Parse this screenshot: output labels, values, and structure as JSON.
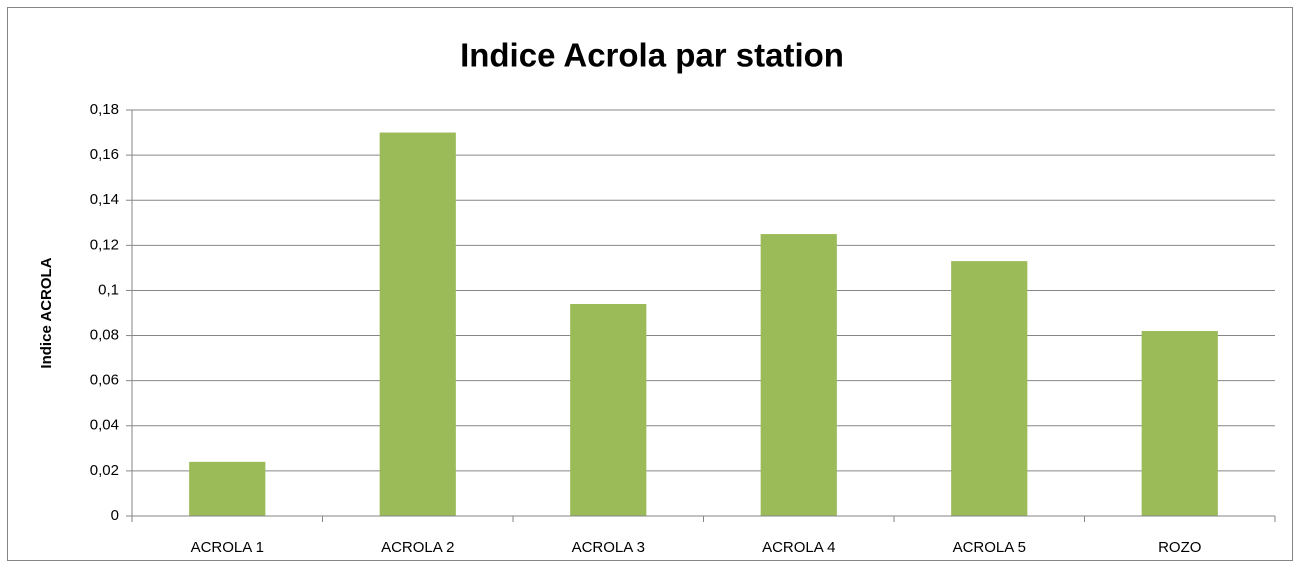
{
  "chart_data": {
    "type": "bar",
    "title": "Indice Acrola par station",
    "y_label": "Indice ACROLA",
    "categories": [
      "ACROLA 1",
      "ACROLA 2",
      "ACROLA 3",
      "ACROLA 4",
      "ACROLA 5",
      "ROZO"
    ],
    "values": [
      0.024,
      0.17,
      0.094,
      0.125,
      0.113,
      0.082
    ],
    "color": "#9bbb59",
    "ylim": [
      0,
      0.18
    ],
    "yticks": [
      0,
      {
        "value": 0.02,
        "label": "0,02"
      },
      {
        "value": 0.04,
        "label": "0,04"
      },
      {
        "value": 0.06,
        "label": "0,06"
      },
      {
        "value": 0.08,
        "label": "0,08"
      },
      {
        "value": 0.1,
        "label": "0,1"
      },
      {
        "value": 0.12,
        "label": "0,12"
      },
      {
        "value": 0.14,
        "label": "0,14"
      },
      {
        "value": 0.16,
        "label": "0,16"
      },
      {
        "value": 0.18,
        "label": "0,18"
      }
    ],
    "grid": true
  }
}
